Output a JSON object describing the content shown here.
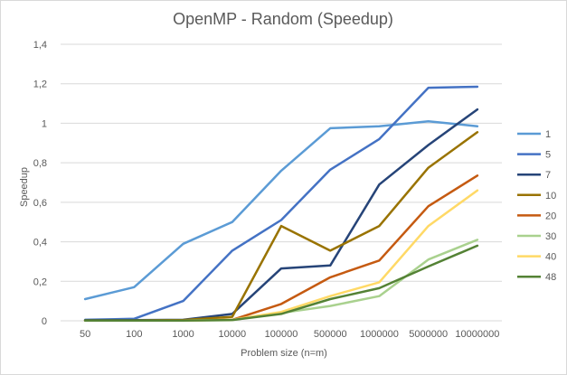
{
  "chart_data": {
    "type": "line",
    "title": "OpenMP - Random (Speedup)",
    "xlabel": "Problem size (n=m)",
    "ylabel": "Speedup",
    "categories": [
      "50",
      "100",
      "1000",
      "10000",
      "100000",
      "500000",
      "1000000",
      "5000000",
      "10000000"
    ],
    "ylim": [
      0,
      1.4
    ],
    "yticks": [
      0,
      0.2,
      0.4,
      0.6,
      0.8,
      1,
      1.2,
      1.4
    ],
    "ytick_labels": [
      "0",
      "0,2",
      "0,4",
      "0,6",
      "0,8",
      "1",
      "1,2",
      "1,4"
    ],
    "grid": true,
    "legend_position": "right",
    "series": [
      {
        "name": "1",
        "color": "#5b9bd5",
        "values": [
          0.11,
          0.17,
          0.39,
          0.5,
          0.76,
          0.975,
          0.985,
          1.01,
          0.985
        ]
      },
      {
        "name": "5",
        "color": "#4472c4",
        "values": [
          0.005,
          0.01,
          0.1,
          0.355,
          0.51,
          0.765,
          0.92,
          1.18,
          1.185
        ]
      },
      {
        "name": "7",
        "color": "#264478",
        "values": [
          0.003,
          0.003,
          0.005,
          0.035,
          0.265,
          0.28,
          0.69,
          0.89,
          1.07
        ]
      },
      {
        "name": "10",
        "color": "#997300",
        "values": [
          0.002,
          0.002,
          0.004,
          0.02,
          0.48,
          0.355,
          0.48,
          0.775,
          0.955
        ]
      },
      {
        "name": "20",
        "color": "#c55a11",
        "values": [
          0.001,
          0.001,
          0.002,
          0.005,
          0.085,
          0.22,
          0.305,
          0.58,
          0.735
        ]
      },
      {
        "name": "30",
        "color": "#a9d18e",
        "values": [
          0.001,
          0.001,
          0.001,
          0.003,
          0.04,
          0.075,
          0.125,
          0.31,
          0.41
        ]
      },
      {
        "name": "40",
        "color": "#ffd966",
        "values": [
          0.001,
          0.001,
          0.001,
          0.005,
          0.045,
          0.125,
          0.195,
          0.48,
          0.66
        ]
      },
      {
        "name": "48",
        "color": "#548235",
        "values": [
          0.001,
          0.001,
          0.001,
          0.004,
          0.035,
          0.11,
          0.165,
          0.275,
          0.38
        ]
      }
    ]
  }
}
